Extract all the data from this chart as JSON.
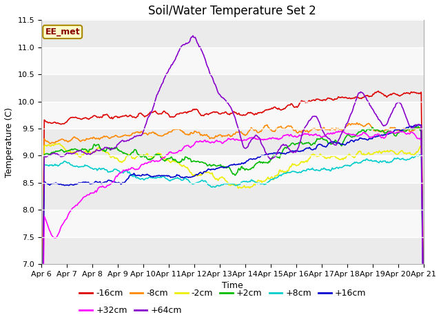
{
  "title": "Soil/Water Temperature Set 2",
  "xlabel": "Time",
  "ylabel": "Temperature (C)",
  "ylim": [
    7.0,
    11.5
  ],
  "annotation": "EE_met",
  "x_tick_labels": [
    "Apr 6",
    "Apr 7",
    "Apr 8",
    "Apr 9",
    "Apr 10",
    "Apr 11",
    "Apr 12",
    "Apr 13",
    "Apr 14",
    "Apr 15",
    "Apr 16",
    "Apr 17",
    "Apr 18",
    "Apr 19",
    "Apr 20",
    "Apr 21"
  ],
  "series": [
    {
      "label": "-16cm",
      "color": "#dd0000"
    },
    {
      "label": "-8cm",
      "color": "#ff8800"
    },
    {
      "label": "-2cm",
      "color": "#eeee00"
    },
    {
      "label": "+2cm",
      "color": "#00bb00"
    },
    {
      "label": "+8cm",
      "color": "#00cccc"
    },
    {
      "label": "+16cm",
      "color": "#0000cc"
    },
    {
      "label": "+32cm",
      "color": "#ff00ff"
    },
    {
      "label": "+64cm",
      "color": "#8800cc"
    }
  ],
  "fig_bg_color": "#ffffff",
  "plot_bg_color": "#ffffff",
  "band_colors": [
    "#ebebeb",
    "#f8f8f8"
  ],
  "title_fontsize": 12,
  "legend_fontsize": 9,
  "axis_label_fontsize": 9,
  "tick_fontsize": 8,
  "linewidth": 1.2
}
